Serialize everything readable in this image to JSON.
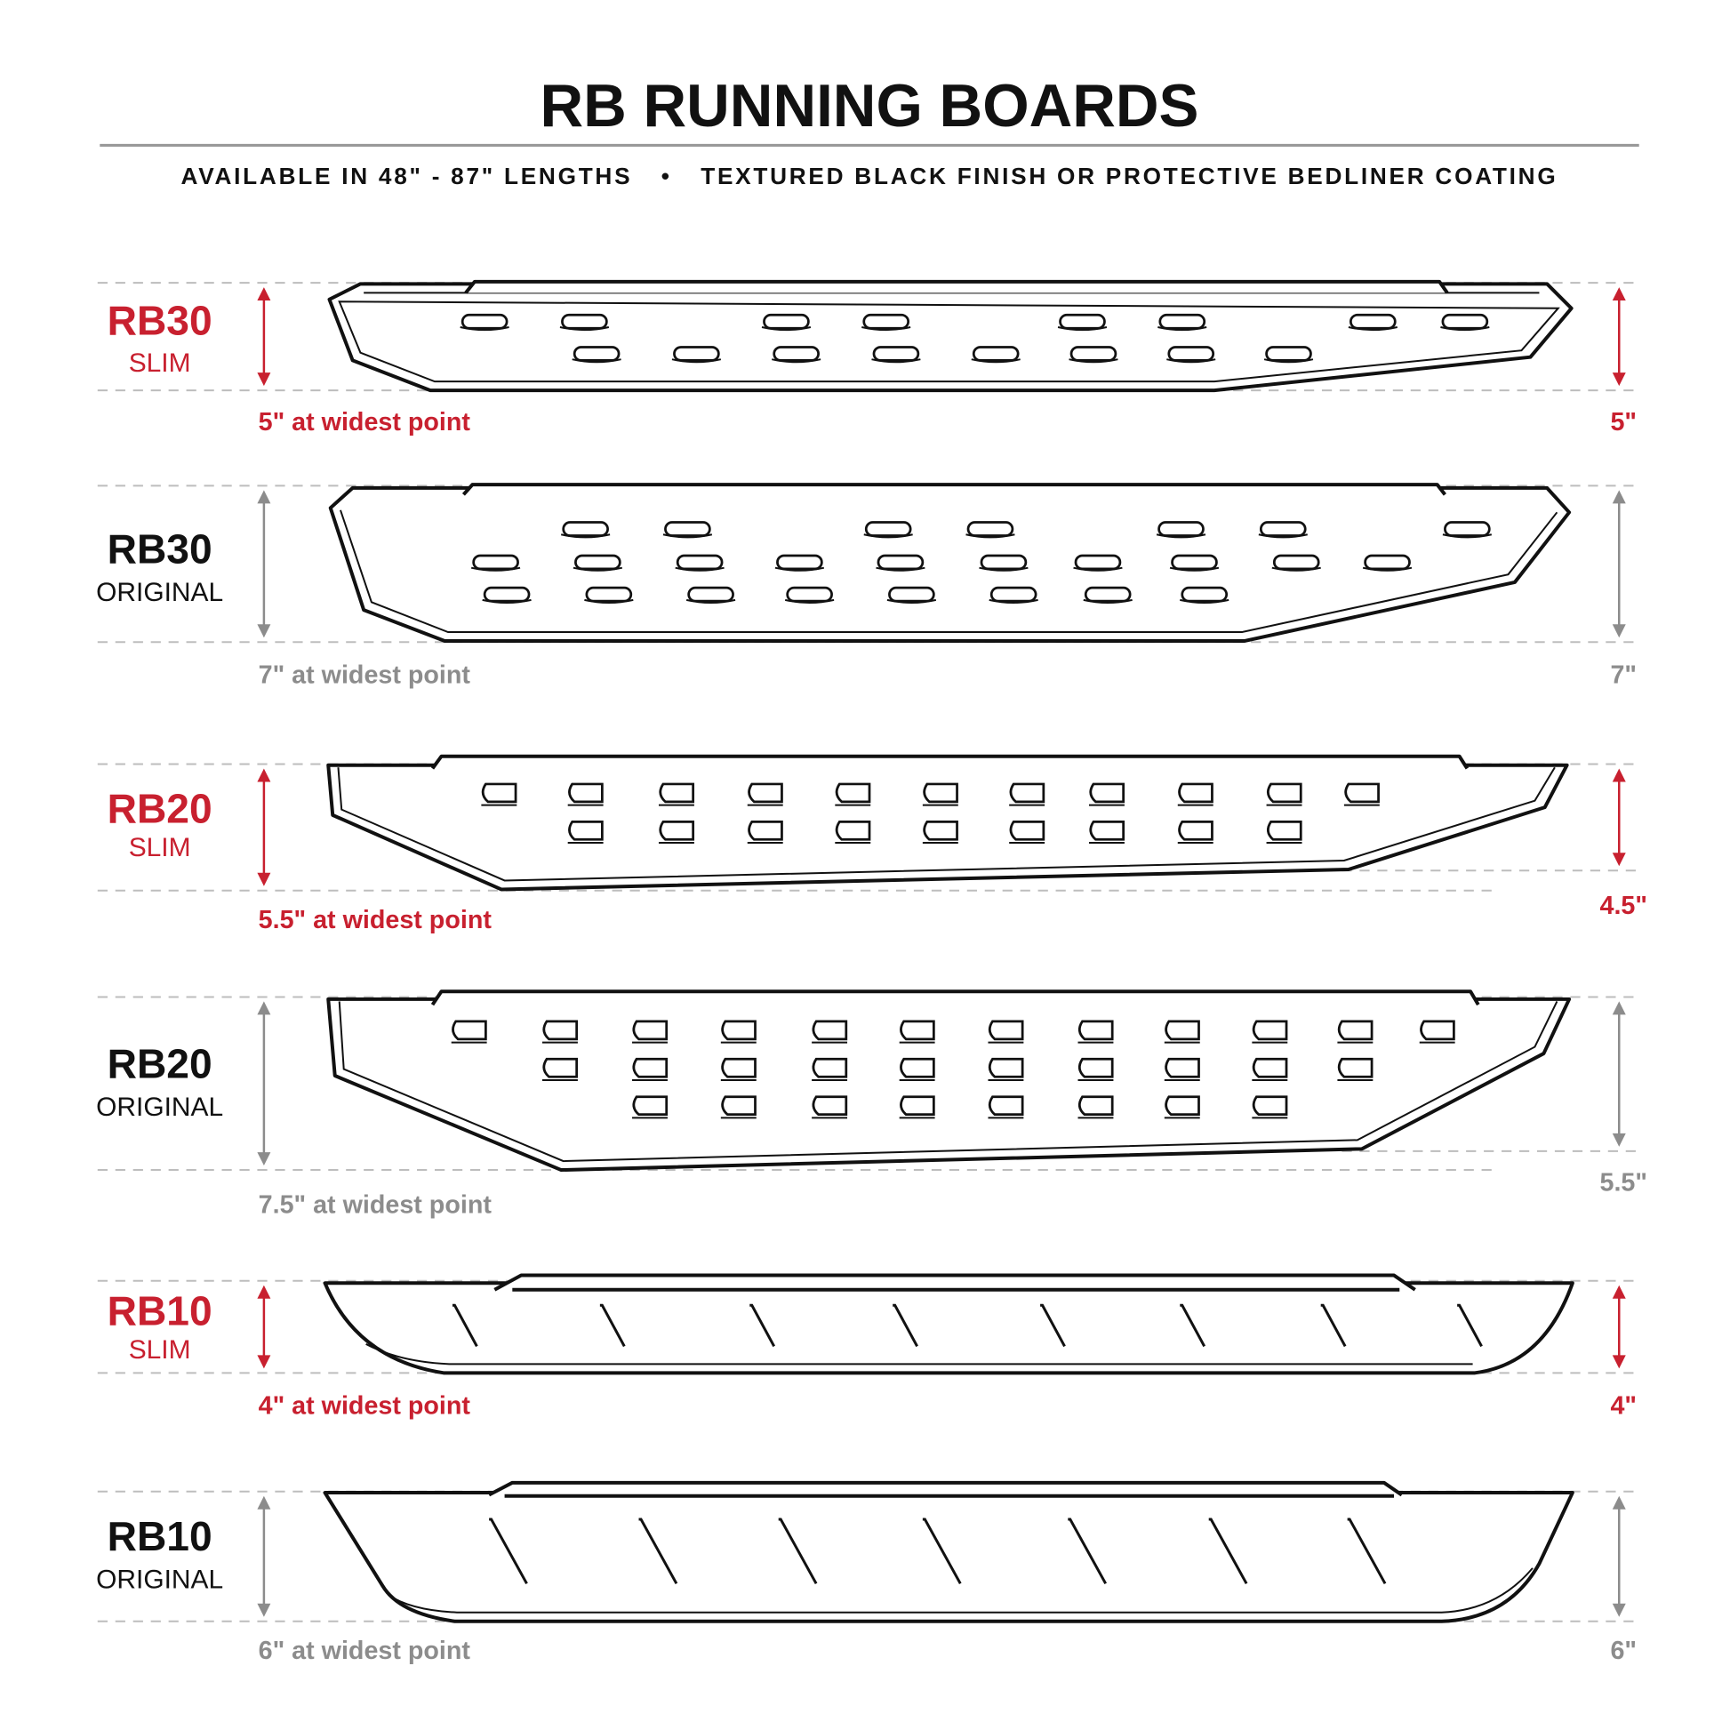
{
  "title": "RB RUNNING BOARDS",
  "subtitle": {
    "lengths": "AVAILABLE IN 48\" - 87\" LENGTHS",
    "separator": "•",
    "finish": "TEXTURED BLACK FINISH OR PROTECTIVE BEDLINER COATING"
  },
  "colors": {
    "accent": "#c8202f",
    "neutral": "#8c8c8c",
    "text": "#111111"
  },
  "boards": [
    {
      "model": "RB30",
      "variant": "SLIM",
      "widest": "5\" at widest point",
      "end_height": "5\"",
      "highlight": true
    },
    {
      "model": "RB30",
      "variant": "ORIGINAL",
      "widest": "7\" at widest point",
      "end_height": "7\"",
      "highlight": false
    },
    {
      "model": "RB20",
      "variant": "SLIM",
      "widest": "5.5\" at widest point",
      "end_height": "4.5\"",
      "highlight": true
    },
    {
      "model": "RB20",
      "variant": "ORIGINAL",
      "widest": "7.5\" at widest point",
      "end_height": "5.5\"",
      "highlight": false
    },
    {
      "model": "RB10",
      "variant": "SLIM",
      "widest": "4\" at widest point",
      "end_height": "4\"",
      "highlight": true
    },
    {
      "model": "RB10",
      "variant": "ORIGINAL",
      "widest": "6\" at widest point",
      "end_height": "6\"",
      "highlight": false
    }
  ]
}
